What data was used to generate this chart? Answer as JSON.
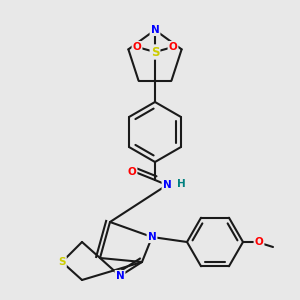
{
  "bg_color": "#e8e8e8",
  "bond_color": "#1a1a1a",
  "bond_width": 1.5,
  "dbo": 0.012,
  "atom_colors": {
    "N": "#0000ff",
    "O": "#ff0000",
    "S": "#cccc00",
    "H": "#008080",
    "C": "#1a1a1a"
  },
  "fs": 7.5,
  "fs_small": 6.5
}
